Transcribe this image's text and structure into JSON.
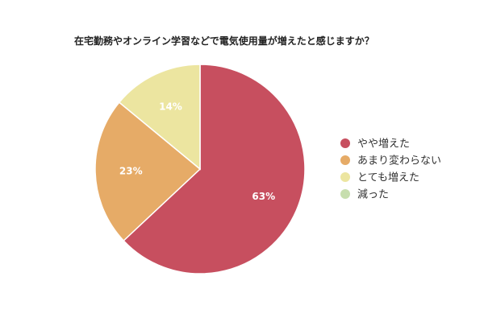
{
  "chart_data": {
    "type": "pie",
    "title": "在宅勤務やオンライン学習などで電気使用量が増えたと感じますか？",
    "categories": [
      "やや増えた",
      "あまり変わらない",
      "とても増えた",
      "減った"
    ],
    "values": [
      63,
      23,
      14,
      0
    ],
    "labels": [
      "63%",
      "23%",
      "14%",
      ""
    ],
    "colors": [
      "#c74f5f",
      "#e6ab67",
      "#ece5a0",
      "#c7deae"
    ],
    "start_angle_deg": 0,
    "direction": "clockwise",
    "legend_position": "right"
  }
}
